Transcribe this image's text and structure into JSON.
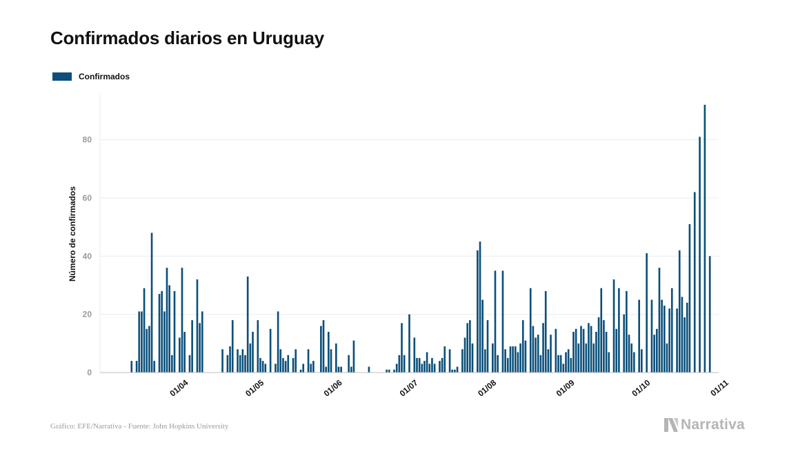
{
  "title": "Confirmados diarios en Uruguay",
  "legend": {
    "label": "Confirmados",
    "color": "#0b4f7a"
  },
  "footer": {
    "source": "Gráfico: EFE/Narrativa - Fuente: John Hopkins University",
    "brand": "Narrativa",
    "brand_icon": "narrativa-logo-icon"
  },
  "colors": {
    "bar": "#0b4f7a",
    "grid": "#ececec",
    "axis": "#bfbfbf",
    "tick_text": "#9a9a9a"
  },
  "chart_data": {
    "type": "bar",
    "title": "Confirmados diarios en Uruguay",
    "xlabel": "",
    "ylabel": "Número de confirmados",
    "ylim": [
      0,
      96
    ],
    "yticks": [
      0,
      20,
      40,
      60,
      80
    ],
    "grid": true,
    "legend_position": "top-left",
    "x_range": [
      "2020-03-01",
      "2020-11-01"
    ],
    "xticks": [
      {
        "date": "2020-04-01",
        "label": "01/04"
      },
      {
        "date": "2020-05-01",
        "label": "01/05"
      },
      {
        "date": "2020-06-01",
        "label": "01/06"
      },
      {
        "date": "2020-07-01",
        "label": "01/07"
      },
      {
        "date": "2020-08-01",
        "label": "01/08"
      },
      {
        "date": "2020-09-01",
        "label": "01/09"
      },
      {
        "date": "2020-10-01",
        "label": "01/10"
      },
      {
        "date": "2020-11-01",
        "label": "01/11"
      }
    ],
    "start_date": "2020-03-13",
    "series": [
      {
        "name": "Confirmados",
        "values": [
          4,
          0,
          4,
          21,
          21,
          29,
          15,
          16,
          48,
          4,
          0,
          27,
          28,
          21,
          36,
          30,
          6,
          28,
          0,
          12,
          36,
          14,
          0,
          6,
          18,
          0,
          32,
          17,
          21,
          0,
          0,
          0,
          0,
          0,
          0,
          0,
          8,
          0,
          6,
          9,
          18,
          0,
          8,
          6,
          8,
          6,
          33,
          10,
          14,
          0,
          18,
          5,
          4,
          3,
          0,
          15,
          0,
          3,
          21,
          8,
          5,
          4,
          6,
          0,
          5,
          8,
          0,
          1,
          3,
          0,
          8,
          3,
          4,
          0,
          0,
          16,
          18,
          2,
          14,
          8,
          0,
          10,
          2,
          2,
          0,
          0,
          6,
          2,
          11,
          0,
          0,
          0,
          0,
          0,
          2,
          0,
          0,
          0,
          0,
          0,
          0,
          1,
          1,
          0,
          1,
          3,
          6,
          17,
          6,
          0,
          20,
          0,
          12,
          5,
          5,
          3,
          4,
          7,
          3,
          5,
          3,
          0,
          4,
          5,
          9,
          0,
          8,
          1,
          1,
          2,
          0,
          8,
          12,
          17,
          18,
          10,
          0,
          42,
          45,
          25,
          8,
          18,
          0,
          10,
          35,
          6,
          0,
          35,
          8,
          5,
          9,
          9,
          9,
          7,
          10,
          18,
          11,
          0,
          29,
          16,
          12,
          13,
          6,
          17,
          28,
          8,
          13,
          0,
          15,
          6,
          6,
          3,
          7,
          8,
          5,
          14,
          15,
          10,
          16,
          15,
          10,
          17,
          16,
          10,
          14,
          19,
          29,
          18,
          14,
          7,
          0,
          32,
          15,
          29,
          0,
          20,
          28,
          13,
          10,
          7,
          0,
          25,
          8,
          0,
          41,
          0,
          25,
          13,
          15,
          36,
          25,
          23,
          10,
          22,
          29,
          0,
          22,
          42,
          26,
          19,
          24,
          51,
          0,
          62,
          0,
          81,
          0,
          92,
          0,
          40
        ]
      }
    ]
  }
}
